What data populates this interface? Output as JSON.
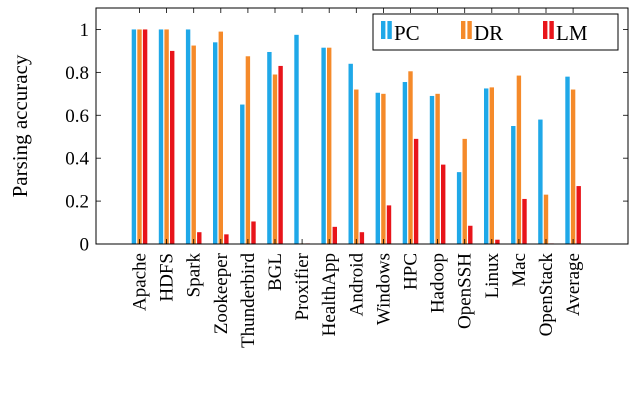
{
  "chart_data": {
    "type": "bar",
    "ylabel": "Parsing accuracy",
    "xlabel": "",
    "ylim": [
      0,
      1.1
    ],
    "yticks": [
      0,
      0.2,
      0.4,
      0.6,
      0.8,
      1
    ],
    "ytick_labels": [
      "0",
      "0.2",
      "0.4",
      "0.6",
      "0.8",
      "1"
    ],
    "grid": false,
    "legend_position": "top-right",
    "categories": [
      "Apache",
      "HDFS",
      "Spark",
      "Zookeeper",
      "Thunderbird",
      "BGL",
      "Proxifier",
      "HealthApp",
      "Android",
      "Windows",
      "HPC",
      "Hadoop",
      "OpenSSH",
      "Linux",
      "Mac",
      "OpenStack",
      "Average"
    ],
    "series": [
      {
        "name": "PC",
        "color": "#1fa8e8",
        "values": [
          1.0,
          1.0,
          1.0,
          0.94,
          0.65,
          0.895,
          0.975,
          0.915,
          0.84,
          0.705,
          0.755,
          0.69,
          0.335,
          0.725,
          0.55,
          0.58,
          0.78
        ]
      },
      {
        "name": "DR",
        "color": "#f58a2a",
        "values": [
          1.0,
          1.0,
          0.925,
          0.99,
          0.875,
          0.79,
          0.002,
          0.915,
          0.72,
          0.7,
          0.805,
          0.7,
          0.49,
          0.73,
          0.785,
          0.23,
          0.72
        ]
      },
      {
        "name": "LM",
        "color": "#e8141a",
        "values": [
          1.0,
          0.9,
          0.055,
          0.045,
          0.105,
          0.83,
          0.002,
          0.08,
          0.055,
          0.18,
          0.49,
          0.37,
          0.085,
          0.02,
          0.21,
          0.002,
          0.27
        ]
      }
    ]
  }
}
